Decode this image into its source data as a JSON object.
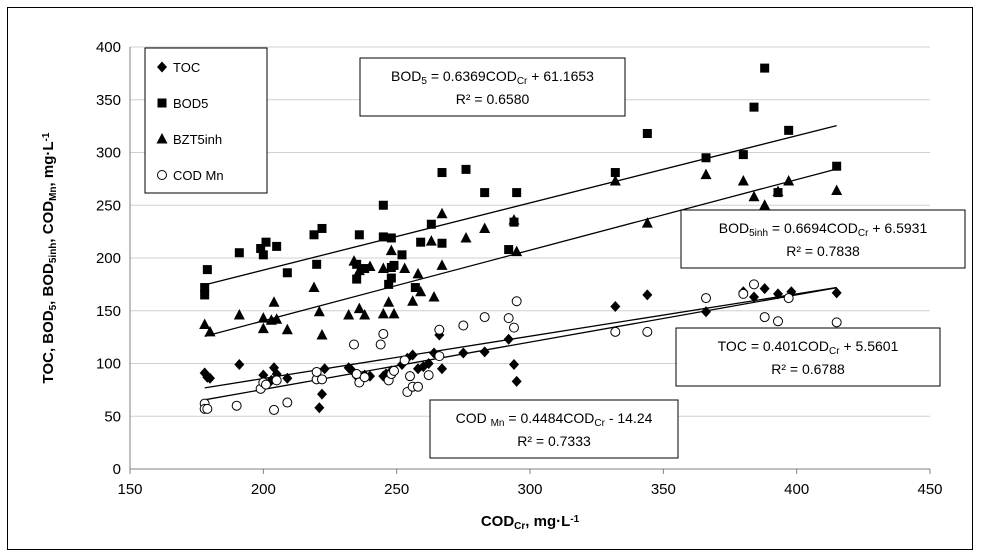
{
  "chart_data": {
    "type": "scatter",
    "xlim": [
      150,
      450
    ],
    "ylim": [
      0,
      400
    ],
    "x_ticks": [
      "150",
      "200",
      "250",
      "300",
      "350",
      "400",
      "450"
    ],
    "y_ticks": [
      "0",
      "50",
      "100",
      "150",
      "200",
      "250",
      "300",
      "350",
      "400"
    ],
    "ylabel_parts": [
      {
        "t": "TOC, BOD",
        "s": 0
      },
      {
        "t": "5",
        "s": 1
      },
      {
        "t": ", BOD",
        "s": 0
      },
      {
        "t": "5inh",
        "s": 1
      },
      {
        "t": ", COD",
        "s": 0
      },
      {
        "t": "Mn",
        "s": 1
      },
      {
        "t": ",  mg·L",
        "s": 0
      },
      {
        "t": "-1",
        "s": 2
      }
    ],
    "xlabel_parts": [
      {
        "t": "COD",
        "s": 0
      },
      {
        "t": "Cr",
        "s": 1
      },
      {
        "t": ", mg·L",
        "s": 0
      },
      {
        "t": "-1",
        "s": 2
      }
    ],
    "grid": "horizontal",
    "legend_position": "top-left",
    "series": [
      {
        "name": "TOC",
        "marker": "diamond",
        "points": [
          [
            178,
            91
          ],
          [
            179,
            87
          ],
          [
            180,
            86
          ],
          [
            191,
            99
          ],
          [
            200,
            89
          ],
          [
            203,
            84
          ],
          [
            204,
            96
          ],
          [
            205,
            90
          ],
          [
            209,
            86
          ],
          [
            220,
            86
          ],
          [
            221,
            58
          ],
          [
            222,
            71
          ],
          [
            223,
            95
          ],
          [
            232,
            96
          ],
          [
            233,
            94
          ],
          [
            235,
            88
          ],
          [
            238,
            89
          ],
          [
            240,
            88
          ],
          [
            245,
            88
          ],
          [
            246,
            90
          ],
          [
            248,
            93
          ],
          [
            252,
            99
          ],
          [
            254,
            105
          ],
          [
            256,
            108
          ],
          [
            258,
            95
          ],
          [
            260,
            97
          ],
          [
            262,
            100
          ],
          [
            264,
            110
          ],
          [
            266,
            127
          ],
          [
            267,
            95
          ],
          [
            275,
            110
          ],
          [
            283,
            111
          ],
          [
            292,
            123
          ],
          [
            294,
            99
          ],
          [
            295,
            83
          ],
          [
            332,
            154
          ],
          [
            344,
            165
          ],
          [
            366,
            149
          ],
          [
            380,
            168
          ],
          [
            384,
            163
          ],
          [
            388,
            171
          ],
          [
            393,
            166
          ],
          [
            398,
            168
          ],
          [
            415,
            167
          ]
        ]
      },
      {
        "name": "BOD5",
        "marker": "square",
        "points": [
          [
            178,
            172
          ],
          [
            178,
            165
          ],
          [
            179,
            189
          ],
          [
            191,
            205
          ],
          [
            199,
            209
          ],
          [
            200,
            203
          ],
          [
            201,
            215
          ],
          [
            205,
            211
          ],
          [
            209,
            186
          ],
          [
            219,
            222
          ],
          [
            220,
            194
          ],
          [
            222,
            228
          ],
          [
            235,
            194
          ],
          [
            235,
            180
          ],
          [
            236,
            222
          ],
          [
            238,
            190
          ],
          [
            245,
            220
          ],
          [
            245,
            250
          ],
          [
            247,
            175
          ],
          [
            248,
            181
          ],
          [
            248,
            219
          ],
          [
            248,
            191
          ],
          [
            249,
            193
          ],
          [
            252,
            203
          ],
          [
            257,
            172
          ],
          [
            259,
            215
          ],
          [
            263,
            232
          ],
          [
            267,
            281
          ],
          [
            267,
            214
          ],
          [
            276,
            284
          ],
          [
            283,
            262
          ],
          [
            292,
            208
          ],
          [
            294,
            234
          ],
          [
            295,
            262
          ],
          [
            332,
            281
          ],
          [
            344,
            318
          ],
          [
            366,
            295
          ],
          [
            380,
            298
          ],
          [
            384,
            343
          ],
          [
            388,
            380
          ],
          [
            393,
            262
          ],
          [
            397,
            321
          ],
          [
            415,
            287
          ]
        ]
      },
      {
        "name": "BZT5inh",
        "marker": "triangle",
        "points": [
          [
            178,
            137
          ],
          [
            180,
            130
          ],
          [
            191,
            146
          ],
          [
            200,
            143
          ],
          [
            200,
            133
          ],
          [
            203,
            141
          ],
          [
            204,
            158
          ],
          [
            205,
            142
          ],
          [
            209,
            132
          ],
          [
            219,
            172
          ],
          [
            221,
            149
          ],
          [
            222,
            127
          ],
          [
            232,
            146
          ],
          [
            234,
            197
          ],
          [
            236,
            152
          ],
          [
            236,
            188
          ],
          [
            238,
            146
          ],
          [
            240,
            192
          ],
          [
            245,
            190
          ],
          [
            245,
            147
          ],
          [
            247,
            158
          ],
          [
            248,
            207
          ],
          [
            249,
            147
          ],
          [
            253,
            190
          ],
          [
            256,
            159
          ],
          [
            258,
            185
          ],
          [
            259,
            168
          ],
          [
            263,
            216
          ],
          [
            264,
            163
          ],
          [
            267,
            193
          ],
          [
            267,
            242
          ],
          [
            276,
            219
          ],
          [
            283,
            228
          ],
          [
            294,
            236
          ],
          [
            295,
            206
          ],
          [
            332,
            273
          ],
          [
            344,
            233
          ],
          [
            366,
            279
          ],
          [
            380,
            273
          ],
          [
            384,
            258
          ],
          [
            388,
            250
          ],
          [
            393,
            263
          ],
          [
            397,
            273
          ],
          [
            415,
            264
          ]
        ]
      },
      {
        "name": "COD Mn",
        "marker": "circle",
        "points": [
          [
            178,
            62
          ],
          [
            178,
            57
          ],
          [
            179,
            57
          ],
          [
            190,
            60
          ],
          [
            199,
            76
          ],
          [
            200,
            82
          ],
          [
            201,
            80
          ],
          [
            204,
            56
          ],
          [
            205,
            84
          ],
          [
            209,
            63
          ],
          [
            220,
            85
          ],
          [
            220,
            92
          ],
          [
            222,
            85
          ],
          [
            234,
            118
          ],
          [
            235,
            90
          ],
          [
            236,
            82
          ],
          [
            238,
            87
          ],
          [
            244,
            118
          ],
          [
            245,
            128
          ],
          [
            247,
            84
          ],
          [
            248,
            90
          ],
          [
            249,
            93
          ],
          [
            253,
            103
          ],
          [
            254,
            73
          ],
          [
            255,
            88
          ],
          [
            256,
            78
          ],
          [
            258,
            78
          ],
          [
            262,
            89
          ],
          [
            266,
            107
          ],
          [
            266,
            132
          ],
          [
            275,
            136
          ],
          [
            283,
            144
          ],
          [
            292,
            143
          ],
          [
            294,
            134
          ],
          [
            295,
            159
          ],
          [
            332,
            130
          ],
          [
            344,
            130
          ],
          [
            366,
            162
          ],
          [
            380,
            166
          ],
          [
            384,
            175
          ],
          [
            388,
            144
          ],
          [
            393,
            140
          ],
          [
            397,
            162
          ],
          [
            415,
            139
          ]
        ]
      }
    ],
    "trendlines": [
      {
        "series": "BOD5",
        "slope": 0.6369,
        "intercept": 61.1653,
        "x_range": [
          178,
          415
        ]
      },
      {
        "series": "BZT5inh",
        "slope": 0.6694,
        "intercept": 6.5931,
        "x_range": [
          178,
          415
        ]
      },
      {
        "series": "TOC",
        "slope": 0.401,
        "intercept": 5.5601,
        "x_range": [
          178,
          415
        ]
      },
      {
        "series": "COD Mn",
        "slope": 0.4484,
        "intercept": -14.24,
        "x_range": [
          178,
          415
        ]
      }
    ],
    "equations": [
      {
        "id": "bod5",
        "line1": [
          {
            "t": "BOD",
            "s": 0
          },
          {
            "t": "5",
            "s": 1
          },
          {
            "t": " = 0.6369COD",
            "s": 0
          },
          {
            "t": "Cr",
            "s": 1
          },
          {
            "t": " + 61.1653",
            "s": 0
          }
        ],
        "line2": "R² = 0.6580"
      },
      {
        "id": "bod5inh",
        "line1": [
          {
            "t": "BOD",
            "s": 0
          },
          {
            "t": "5inh",
            "s": 1
          },
          {
            "t": " = 0.6694COD",
            "s": 0
          },
          {
            "t": "Cr",
            "s": 1
          },
          {
            "t": " + 6.5931",
            "s": 0
          }
        ],
        "line2": "R² = 0.7838"
      },
      {
        "id": "toc",
        "line1": [
          {
            "t": "TOC = 0.401COD",
            "s": 0
          },
          {
            "t": "Cr",
            "s": 1
          },
          {
            "t": " + 5.5601",
            "s": 0
          }
        ],
        "line2": "R² = 0.6788"
      },
      {
        "id": "codmn",
        "line1": [
          {
            "t": "COD ",
            "s": 0
          },
          {
            "t": "Mn",
            "s": 1
          },
          {
            "t": " = 0.4484COD",
            "s": 0
          },
          {
            "t": "Cr",
            "s": 1
          },
          {
            "t": " - 14.24",
            "s": 0
          }
        ],
        "line2": "R² = 0.7333"
      }
    ]
  }
}
